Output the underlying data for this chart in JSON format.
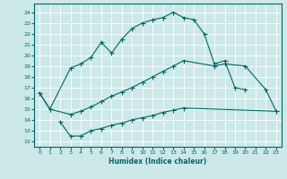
{
  "xlabel": "Humidex (Indice chaleur)",
  "bg_color": "#cce8e8",
  "grid_color": "#ffffff",
  "line_color": "#006666",
  "xlim": [
    -0.5,
    23.5
  ],
  "ylim": [
    11.5,
    24.8
  ],
  "xticks": [
    0,
    1,
    2,
    3,
    4,
    5,
    6,
    7,
    8,
    9,
    10,
    11,
    12,
    13,
    14,
    15,
    16,
    17,
    18,
    19,
    20,
    21,
    22,
    23
  ],
  "yticks": [
    12,
    13,
    14,
    15,
    16,
    17,
    18,
    19,
    20,
    21,
    22,
    23,
    24
  ],
  "line1_x": [
    0,
    1,
    3,
    4,
    5,
    6,
    7,
    8,
    9,
    10,
    11,
    12,
    13,
    14,
    15,
    16,
    17,
    18,
    19,
    20
  ],
  "line1_y": [
    16.5,
    15.0,
    18.8,
    19.2,
    19.8,
    21.2,
    20.2,
    21.5,
    22.5,
    23.0,
    23.3,
    23.5,
    24.0,
    23.5,
    23.3,
    22.0,
    19.2,
    19.5,
    17.0,
    16.8
  ],
  "line2_x": [
    0,
    1,
    3,
    4,
    5,
    6,
    7,
    8,
    9,
    10,
    11,
    12,
    13,
    14,
    17,
    18,
    20,
    22,
    23
  ],
  "line2_y": [
    16.5,
    15.0,
    14.5,
    14.8,
    15.2,
    15.7,
    16.2,
    16.6,
    17.0,
    17.5,
    18.0,
    18.5,
    19.0,
    19.5,
    19.0,
    19.2,
    19.0,
    16.8,
    14.8
  ],
  "line3_x": [
    2,
    3,
    4,
    5,
    6,
    7,
    8,
    9,
    10,
    11,
    12,
    13,
    14,
    23
  ],
  "line3_y": [
    13.8,
    12.5,
    12.5,
    13.0,
    13.2,
    13.5,
    13.7,
    14.0,
    14.2,
    14.4,
    14.7,
    14.9,
    15.1,
    14.8
  ]
}
